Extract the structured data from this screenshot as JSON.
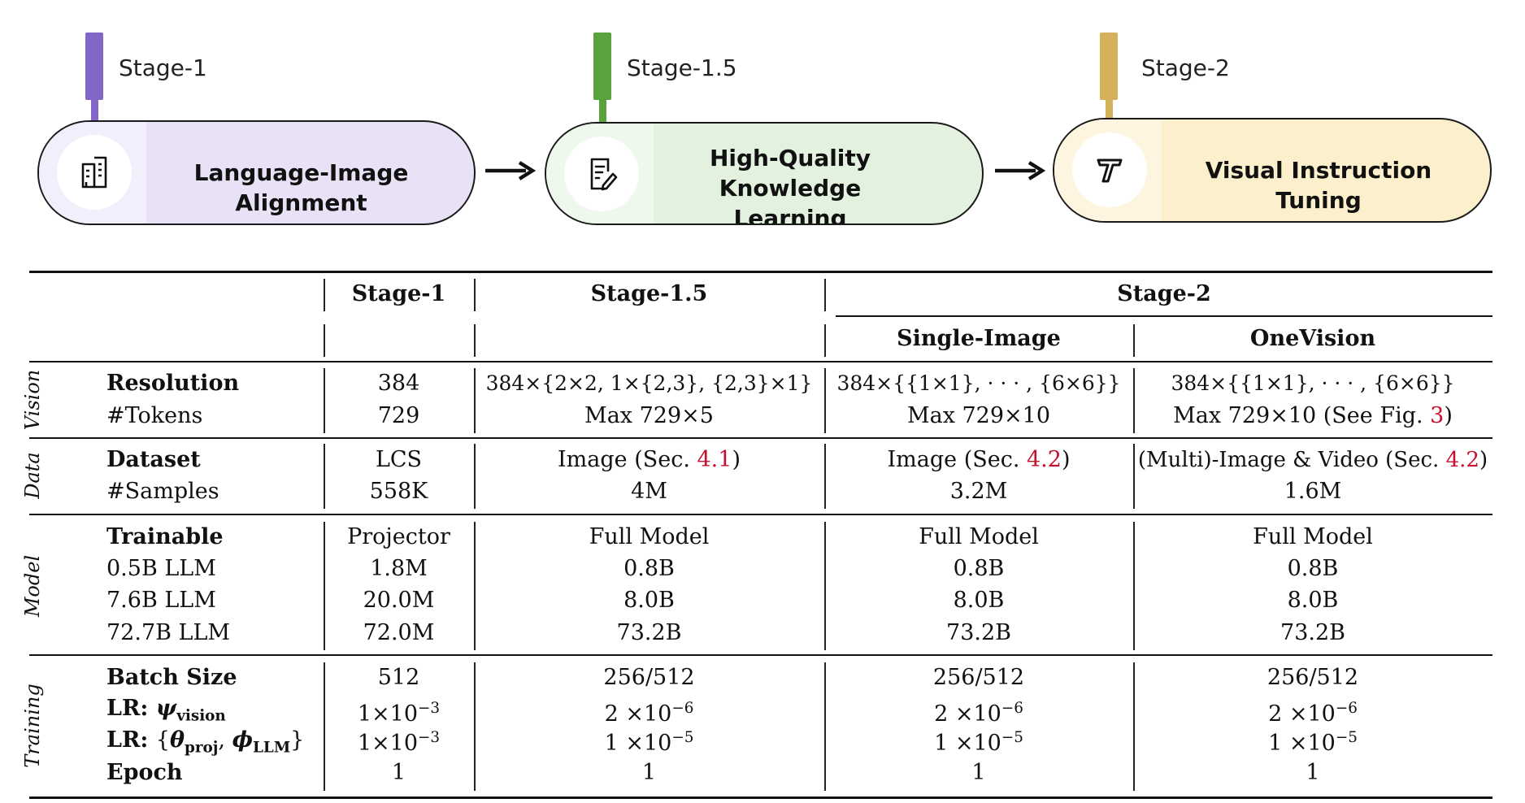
{
  "stages": [
    {
      "flag": "Stage-1",
      "title_lines": [
        "Language-Image Alignment"
      ],
      "icon": "building-icon",
      "color": "#8466c9",
      "fill": "#e9e2f7",
      "shade": "#f3eefb"
    },
    {
      "flag": "Stage-1.5",
      "title_lines": [
        "High-Quality",
        "Knowledge Learning"
      ],
      "icon": "edit-document-icon",
      "color": "#5aa33c",
      "fill": "#e2f2df",
      "shade": "#eef8ec"
    },
    {
      "flag": "Stage-2",
      "title_lines": [
        "Visual Instruction Tuning"
      ],
      "icon": "text-t-icon",
      "color": "#d4b25c",
      "fill": "#fbefcc",
      "shade": "#fdf5df"
    }
  ],
  "table": {
    "headers": {
      "stage1": "Stage-1",
      "stage15": "Stage-1.5",
      "stage2": "Stage-2",
      "single": "Single-Image",
      "onevision": "OneVision"
    },
    "groups": [
      "Vision",
      "Data",
      "Model",
      "Training"
    ],
    "rows": {
      "resolution": {
        "label": "Resolution",
        "s1": "384",
        "s15": "384×{2×2, 1×{2,3}, {2,3}×1}",
        "si": "384×{{1×1}, · · · , {6×6}}",
        "ov": "384×{{1×1}, · · · , {6×6}}"
      },
      "tokens": {
        "label": "#Tokens",
        "s1": "729",
        "s15": "Max 729×5",
        "si": "Max 729×10",
        "ov_pre": "Max 729×10 (See Fig. ",
        "ov_ref": "3",
        "ov_post": ")"
      },
      "dataset": {
        "label": "Dataset",
        "s1": "LCS",
        "s15_pre": "Image (Sec. ",
        "s15_ref": "4.1",
        "s15_post": ")",
        "si_pre": "Image (Sec. ",
        "si_ref": "4.2",
        "si_post": ")",
        "ov_pre": "(Multi)-Image & Video (Sec. ",
        "ov_ref": "4.2",
        "ov_post": ")"
      },
      "samples": {
        "label": "#Samples",
        "s1": "558K",
        "s15": "4M",
        "si": "3.2M",
        "ov": "1.6M"
      },
      "trainable": {
        "label": "Trainable",
        "s1": "Projector",
        "s15": "Full Model",
        "si": "Full Model",
        "ov": "Full Model"
      },
      "llm05": {
        "label": "0.5B LLM",
        "s1": "1.8M",
        "s15": "0.8B",
        "si": "0.8B",
        "ov": "0.8B"
      },
      "llm76": {
        "label": "7.6B LLM",
        "s1": "20.0M",
        "s15": "8.0B",
        "si": "8.0B",
        "ov": "8.0B"
      },
      "llm727": {
        "label": "72.7B LLM",
        "s1": "72.0M",
        "s15": "73.2B",
        "si": "73.2B",
        "ov": "73.2B"
      },
      "batch": {
        "label": "Batch Size",
        "s1": "512",
        "s15": "256/512",
        "si": "256/512",
        "ov": "256/512"
      },
      "lr_vision": {
        "label": "LR:",
        "sym": "ψ",
        "sub": "vision",
        "s1_base": "1×10",
        "s1_exp": "−3",
        "s15_base": "2 ×10",
        "s15_exp": "−6",
        "si_base": "2 ×10",
        "si_exp": "−6",
        "ov_base": "2 ×10",
        "ov_exp": "−6"
      },
      "lr_llm": {
        "label": "LR:",
        "open": "{",
        "sym1": "θ",
        "sub1": "proj",
        "comma": ", ",
        "sym2": "ϕ",
        "sub2": "LLM",
        "close": "}",
        "s1_base": "1×10",
        "s1_exp": "−3",
        "s15_base": "1 ×10",
        "s15_exp": "−5",
        "si_base": "1 ×10",
        "si_exp": "−5",
        "ov_base": "1 ×10",
        "ov_exp": "−5"
      },
      "epoch": {
        "label": "Epoch",
        "s1": "1",
        "s15": "1",
        "si": "1",
        "ov": "1"
      }
    }
  }
}
